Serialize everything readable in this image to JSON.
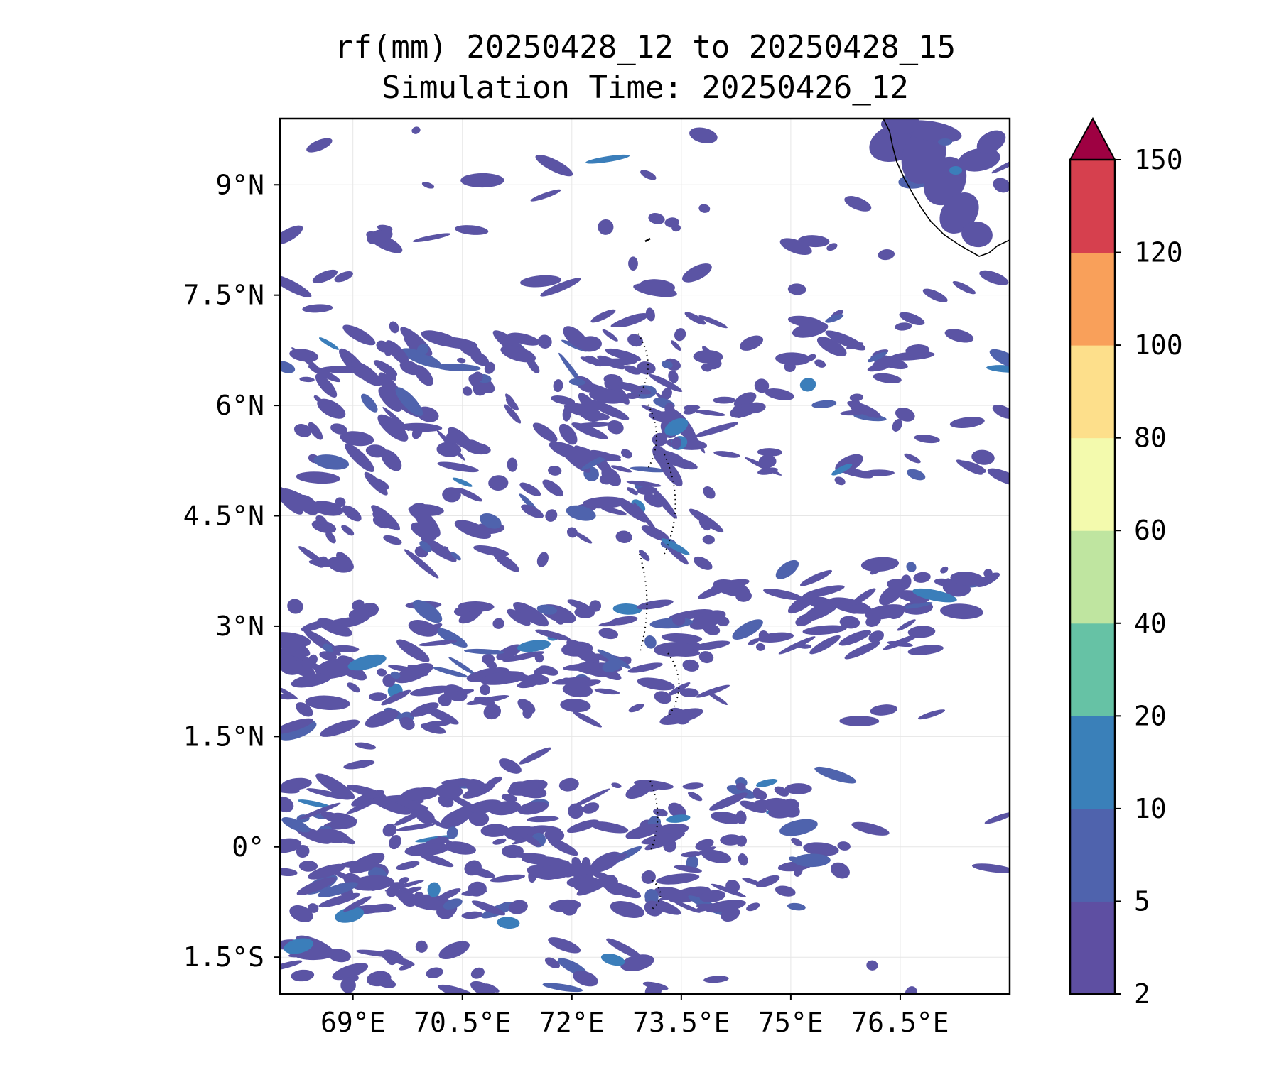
{
  "title": {
    "line1": "rf(mm) 20250428_12 to 20250428_15",
    "line2": "Simulation Time: 20250426_12"
  },
  "map": {
    "lon_range": [
      68.0,
      78.0
    ],
    "lat_range": [
      -2.0,
      9.9
    ],
    "x_ticks": [
      {
        "value": 69.0,
        "label": "69°E"
      },
      {
        "value": 70.5,
        "label": "70.5°E"
      },
      {
        "value": 72.0,
        "label": "72°E"
      },
      {
        "value": 73.5,
        "label": "73.5°E"
      },
      {
        "value": 75.0,
        "label": "75°E"
      },
      {
        "value": 76.5,
        "label": "76.5°E"
      }
    ],
    "y_ticks": [
      {
        "value": 9.0,
        "label": "9°N"
      },
      {
        "value": 7.5,
        "label": "7.5°N"
      },
      {
        "value": 6.0,
        "label": "6°N"
      },
      {
        "value": 4.5,
        "label": "4.5°N"
      },
      {
        "value": 3.0,
        "label": "3°N"
      },
      {
        "value": 1.5,
        "label": "1.5°N"
      },
      {
        "value": 0.0,
        "label": "0°"
      },
      {
        "value": -1.5,
        "label": "1.5°S"
      }
    ],
    "grid": true,
    "rain_color": "#5b54a4",
    "rain_color_10": "#4f63ad",
    "rain_color_20": "#3b7eba"
  },
  "colorbar": {
    "levels": [
      {
        "label": "2",
        "color": "#5e4fa2"
      },
      {
        "label": "5",
        "color": "#4f63ad"
      },
      {
        "label": "10",
        "color": "#3a80b9"
      },
      {
        "label": "20",
        "color": "#66c2a5"
      },
      {
        "label": "40",
        "color": "#bfe5a0"
      },
      {
        "label": "60",
        "color": "#f3faad"
      },
      {
        "label": "80",
        "color": "#fddf8b"
      },
      {
        "label": "100",
        "color": "#f9a05a"
      },
      {
        "label": "120",
        "color": "#d6404e"
      },
      {
        "label": "150",
        "color": ""
      }
    ],
    "extend_color": "#9e0142"
  }
}
